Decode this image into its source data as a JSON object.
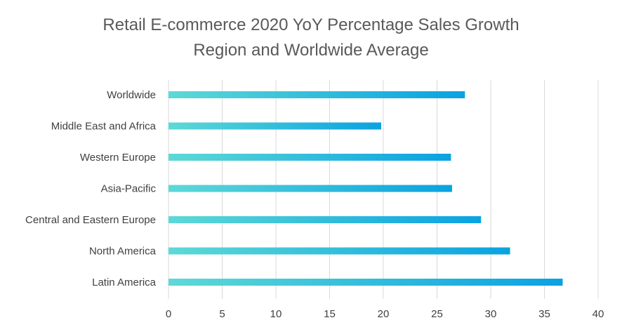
{
  "chart_data": {
    "type": "bar",
    "orientation": "horizontal",
    "title": "Retail E-commerce 2020 YoY Percentage Sales Growth",
    "subtitle": "Region and Worldwide Average",
    "xlabel": "",
    "ylabel": "",
    "categories": [
      "Worldwide",
      "Middle East and Africa",
      "Western Europe",
      "Asia-Pacific",
      "Central and Eastern Europe",
      "North America",
      "Latin America"
    ],
    "values": [
      27.6,
      19.8,
      26.3,
      26.4,
      29.1,
      31.8,
      36.7
    ],
    "xlim": [
      0,
      40
    ],
    "xticks": [
      0,
      5,
      10,
      15,
      20,
      25,
      30,
      35,
      40
    ],
    "grid": "vertical",
    "legend": "none",
    "colors": {
      "bar_start": "#5dd9d6",
      "bar_end": "#0aa2e1",
      "grid": "#d9d9d9",
      "title": "#595959",
      "label": "#404040"
    }
  }
}
